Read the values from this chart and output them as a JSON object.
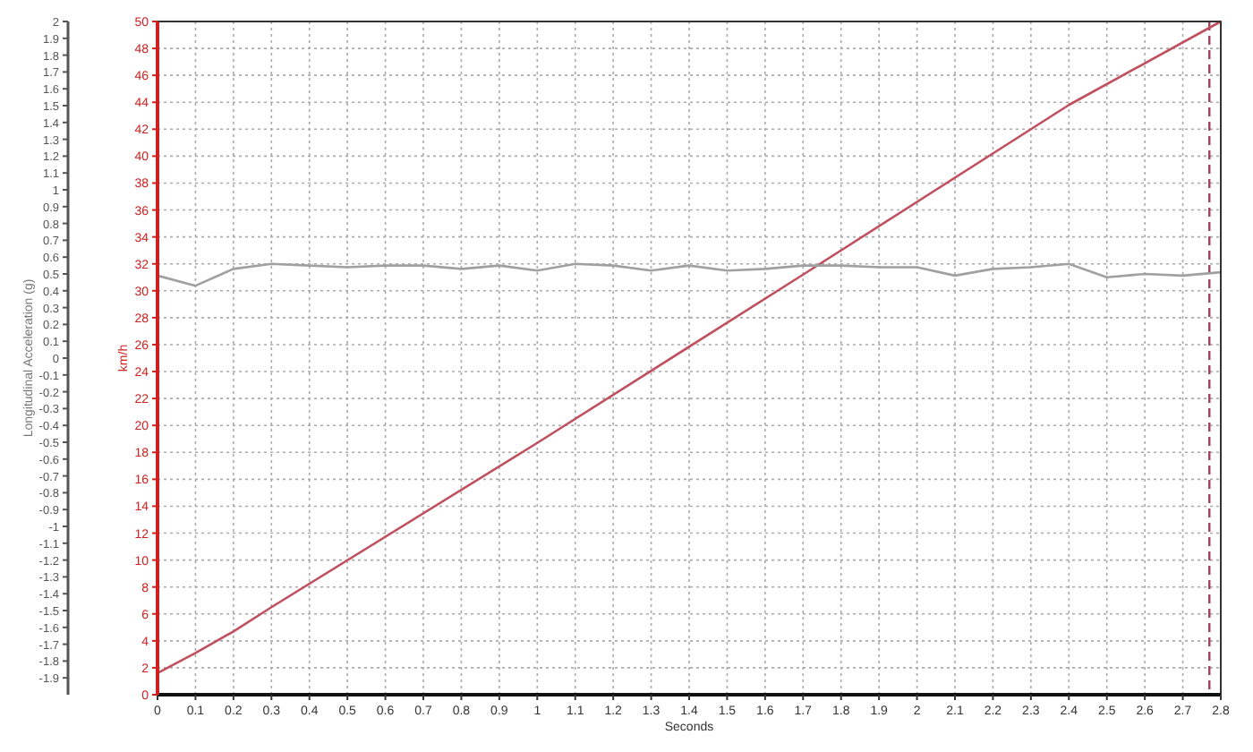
{
  "chart_data": {
    "type": "line",
    "xlabel": "Seconds",
    "ylabel": "km/h",
    "y2label": "Longitudinal Acceleration (g)",
    "x": [
      0,
      0.1,
      0.2,
      0.3,
      0.4,
      0.5,
      0.6,
      0.7,
      0.8,
      0.9,
      1,
      1.1,
      1.2,
      1.3,
      1.4,
      1.5,
      1.6,
      1.7,
      1.8,
      1.9,
      2,
      2.1,
      2.2,
      2.3,
      2.4,
      2.5,
      2.6,
      2.7,
      2.8
    ],
    "series": [
      {
        "color": "#c0505e",
        "x": [
          0,
          0.1,
          0.2,
          0.3,
          1,
          1.7,
          2.4,
          2.8
        ],
        "values": [
          1.6,
          3.1,
          4.7,
          6.5,
          18.7,
          31.2,
          43.8,
          50
        ]
      },
      {
        "color": "#a0a0a0",
        "axis": "y2",
        "values": [
          0.49,
          0.43,
          0.53,
          0.56,
          0.55,
          0.54,
          0.55,
          0.55,
          0.53,
          0.55,
          0.52,
          0.56,
          0.55,
          0.52,
          0.55,
          0.52,
          0.53,
          0.55,
          0.55,
          0.54,
          0.54,
          0.49,
          0.53,
          0.54,
          0.56,
          0.48,
          0.5,
          0.49,
          0.51
        ]
      }
    ],
    "xlim": [
      0,
      2.8
    ],
    "xticks": [
      0,
      0.1,
      0.2,
      0.3,
      0.4,
      0.5,
      0.6,
      0.7,
      0.8,
      0.9,
      1,
      1.1,
      1.2,
      1.3,
      1.4,
      1.5,
      1.6,
      1.7,
      1.8,
      1.9,
      2,
      2.1,
      2.2,
      2.3,
      2.4,
      2.5,
      2.6,
      2.7,
      2.8
    ],
    "ylim": [
      0,
      50
    ],
    "yticks": [
      0,
      2,
      4,
      6,
      8,
      10,
      12,
      14,
      16,
      18,
      20,
      22,
      24,
      26,
      28,
      30,
      32,
      34,
      36,
      38,
      40,
      42,
      44,
      46,
      48,
      50
    ],
    "y2lim": [
      -2,
      2
    ],
    "y2ticks": [
      -1.9,
      -1.8,
      -1.7,
      -1.6,
      -1.5,
      -1.4,
      -1.3,
      -1.2,
      -1.1,
      -1,
      -0.9,
      -0.8,
      -0.7,
      -0.6,
      -0.5,
      -0.4,
      -0.3,
      -0.2,
      -0.1,
      0,
      0.1,
      0.2,
      0.3,
      0.4,
      0.5,
      0.6,
      0.7,
      0.8,
      0.9,
      1,
      1.1,
      1.2,
      1.3,
      1.4,
      1.5,
      1.6,
      1.7,
      1.8,
      1.9,
      2
    ],
    "grid": true,
    "line_style": "solid",
    "marker": "none",
    "ref_lines": [
      {
        "axis": "x",
        "value": 2.77,
        "color": "#a04060",
        "line_style": "dashed"
      }
    ]
  }
}
